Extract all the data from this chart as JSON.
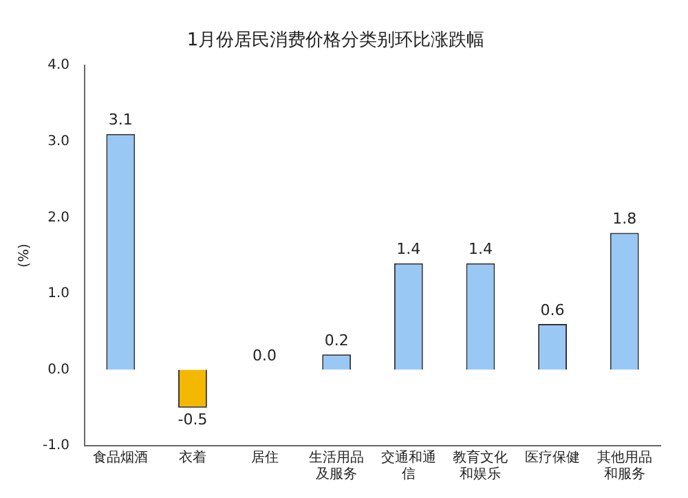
{
  "chart_data": {
    "type": "bar",
    "title": "1月份居民消费价格分类别环比涨跌幅",
    "ylabel": "(%)",
    "categories": [
      "食品烟酒",
      "衣着",
      "居住",
      "生活用品及服务",
      "交通和通信",
      "教育文化和娱乐",
      "医疗保健",
      "其他用品和服务"
    ],
    "values": [
      3.1,
      -0.5,
      0.0,
      0.2,
      1.4,
      1.4,
      0.6,
      1.8
    ],
    "colors": [
      "#99c8f5",
      "#f5b800",
      "#99c8f5",
      "#99c8f5",
      "#99c8f5",
      "#99c8f5",
      "#99c8f5",
      "#99c8f5"
    ],
    "value_labels": [
      "3.1",
      "-0.5",
      "0.0",
      "0.2",
      "1.4",
      "1.4",
      "0.6",
      "1.8"
    ],
    "ylim": [
      -1,
      4
    ],
    "yticks": [
      {
        "value": -1,
        "label": "-1.0"
      },
      {
        "value": 0,
        "label": "0.0"
      },
      {
        "value": 1,
        "label": "1.0"
      },
      {
        "value": 2,
        "label": "2.0"
      },
      {
        "value": 3,
        "label": "3.0"
      },
      {
        "value": 4,
        "label": "4.0"
      }
    ],
    "grid": false,
    "legend": false
  }
}
